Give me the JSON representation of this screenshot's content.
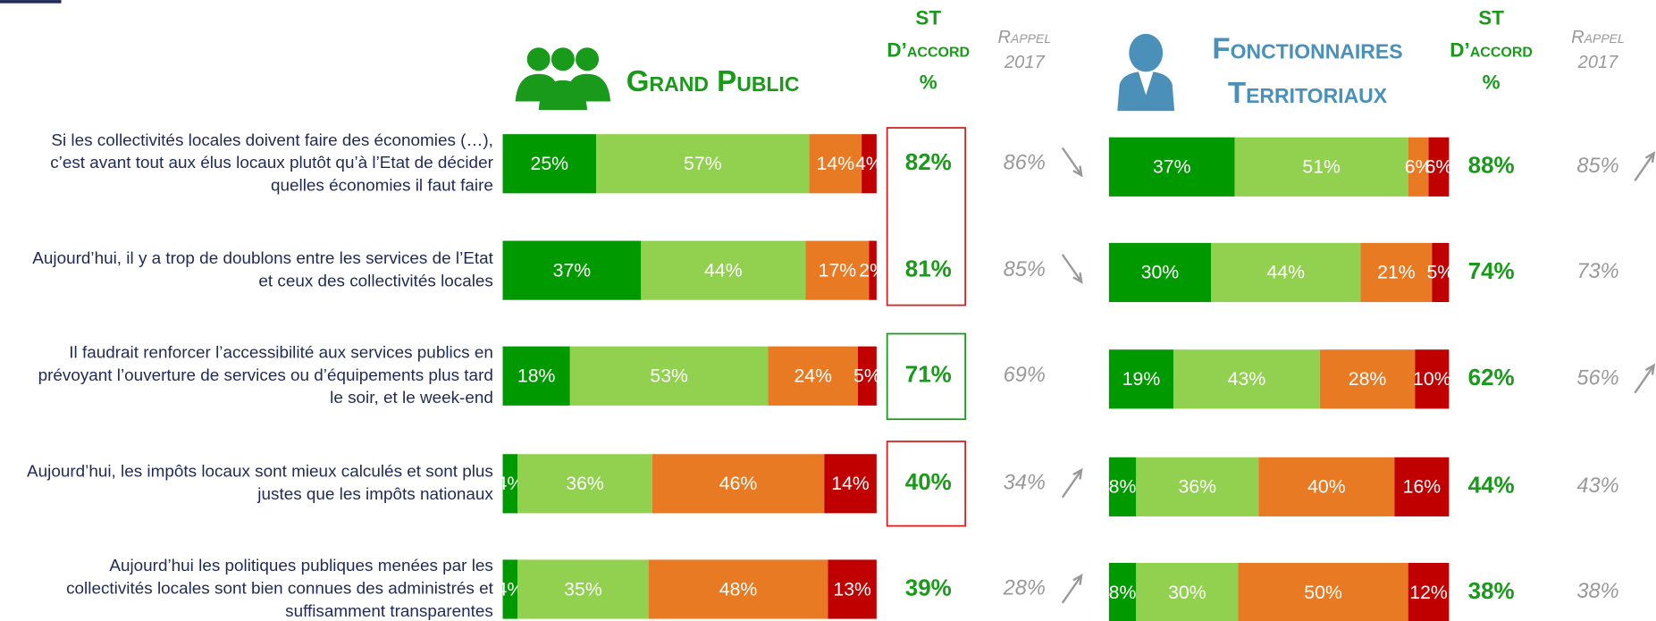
{
  "statements": [
    [
      "Si les collectivités locales doivent faire des économies (…),",
      "c’est avant tout aux élus locaux plutôt qu’à l’Etat de décider",
      "quelles économies il faut faire"
    ],
    [
      "Aujourd’hui, il y a trop de doublons entre les services de l’Etat",
      "et ceux des collectivités locales"
    ],
    [
      "Il faudrait renforcer l’accessibilité aux services publics en",
      "prévoyant l’ouverture de services ou d’équipements plus tard",
      "le soir, et le week-end"
    ],
    [
      "Aujourd’hui, les impôts locaux sont mieux calculés et sont plus",
      "justes que les impôts nationaux"
    ],
    [
      "Aujourd’hui les politiques publiques menées par les",
      "collectivités locales sont bien connues des administrés et",
      "suffisamment transparentes"
    ]
  ],
  "colors": [
    "#009a00",
    "#92d050",
    "#e87a24",
    "#c00000"
  ],
  "groups": [
    {
      "title": [
        "Grand Public"
      ],
      "color": "#1a9a1a",
      "st_header": [
        "ST",
        "D’accord",
        "%"
      ],
      "rappel_header": [
        "Rappel",
        "2017"
      ],
      "rows": [
        {
          "values": [
            25,
            57,
            14,
            4
          ],
          "value_labels": [
            "25%",
            "57%",
            "14%",
            "4%"
          ],
          "st": 82,
          "st_label": "82%",
          "rappel": 86,
          "rappel_label": "86%",
          "trend": "down"
        },
        {
          "values": [
            37,
            44,
            17,
            2
          ],
          "value_labels": [
            "37%",
            "44%",
            "17%",
            "2%"
          ],
          "st": 81,
          "st_label": "81%",
          "rappel": 85,
          "rappel_label": "85%",
          "trend": "down"
        },
        {
          "values": [
            18,
            53,
            24,
            5
          ],
          "value_labels": [
            "18%",
            "53%",
            "24%",
            "5%"
          ],
          "st": 71,
          "st_label": "71%",
          "rappel": 69,
          "rappel_label": "69%"
        },
        {
          "values": [
            4,
            36,
            46,
            14
          ],
          "value_labels": [
            "4%",
            "36%",
            "46%",
            "14%"
          ],
          "st": 40,
          "st_label": "40%",
          "rappel": 34,
          "rappel_label": "34%",
          "trend": "up"
        },
        {
          "values": [
            4,
            35,
            48,
            13
          ],
          "value_labels": [
            "4%",
            "35%",
            "48%",
            "13%"
          ],
          "st": 39,
          "st_label": "39%",
          "rappel": 28,
          "rappel_label": "28%",
          "trend": "up"
        }
      ]
    },
    {
      "title": [
        "Fonctionnaires",
        "Territoriaux"
      ],
      "color": "#4a90b8",
      "st_header": [
        "ST",
        "D’accord",
        "%"
      ],
      "rappel_header": [
        "Rappel",
        "2017"
      ],
      "rows": [
        {
          "values": [
            37,
            51,
            6,
            6
          ],
          "value_labels": [
            "37%",
            "51%",
            "6%",
            "6%"
          ],
          "st": 88,
          "st_label": "88%",
          "rappel": 85,
          "rappel_label": "85%",
          "trend": "up"
        },
        {
          "values": [
            30,
            44,
            21,
            5
          ],
          "value_labels": [
            "30%",
            "44%",
            "21%",
            "5%"
          ],
          "st": 74,
          "st_label": "74%",
          "rappel": 73,
          "rappel_label": "73%"
        },
        {
          "values": [
            19,
            43,
            28,
            10
          ],
          "value_labels": [
            "19%",
            "43%",
            "28%",
            "10%"
          ],
          "st": 62,
          "st_label": "62%",
          "rappel": 56,
          "rappel_label": "56%",
          "trend": "up"
        },
        {
          "values": [
            8,
            36,
            40,
            16
          ],
          "value_labels": [
            "8%",
            "36%",
            "40%",
            "16%"
          ],
          "st": 44,
          "st_label": "44%",
          "rappel": 43,
          "rappel_label": "43%"
        },
        {
          "values": [
            8,
            30,
            50,
            12
          ],
          "value_labels": [
            "8%",
            "30%",
            "50%",
            "12%"
          ],
          "st": 38,
          "st_label": "38%",
          "rappel": 38,
          "rappel_label": "38%"
        }
      ]
    }
  ]
}
